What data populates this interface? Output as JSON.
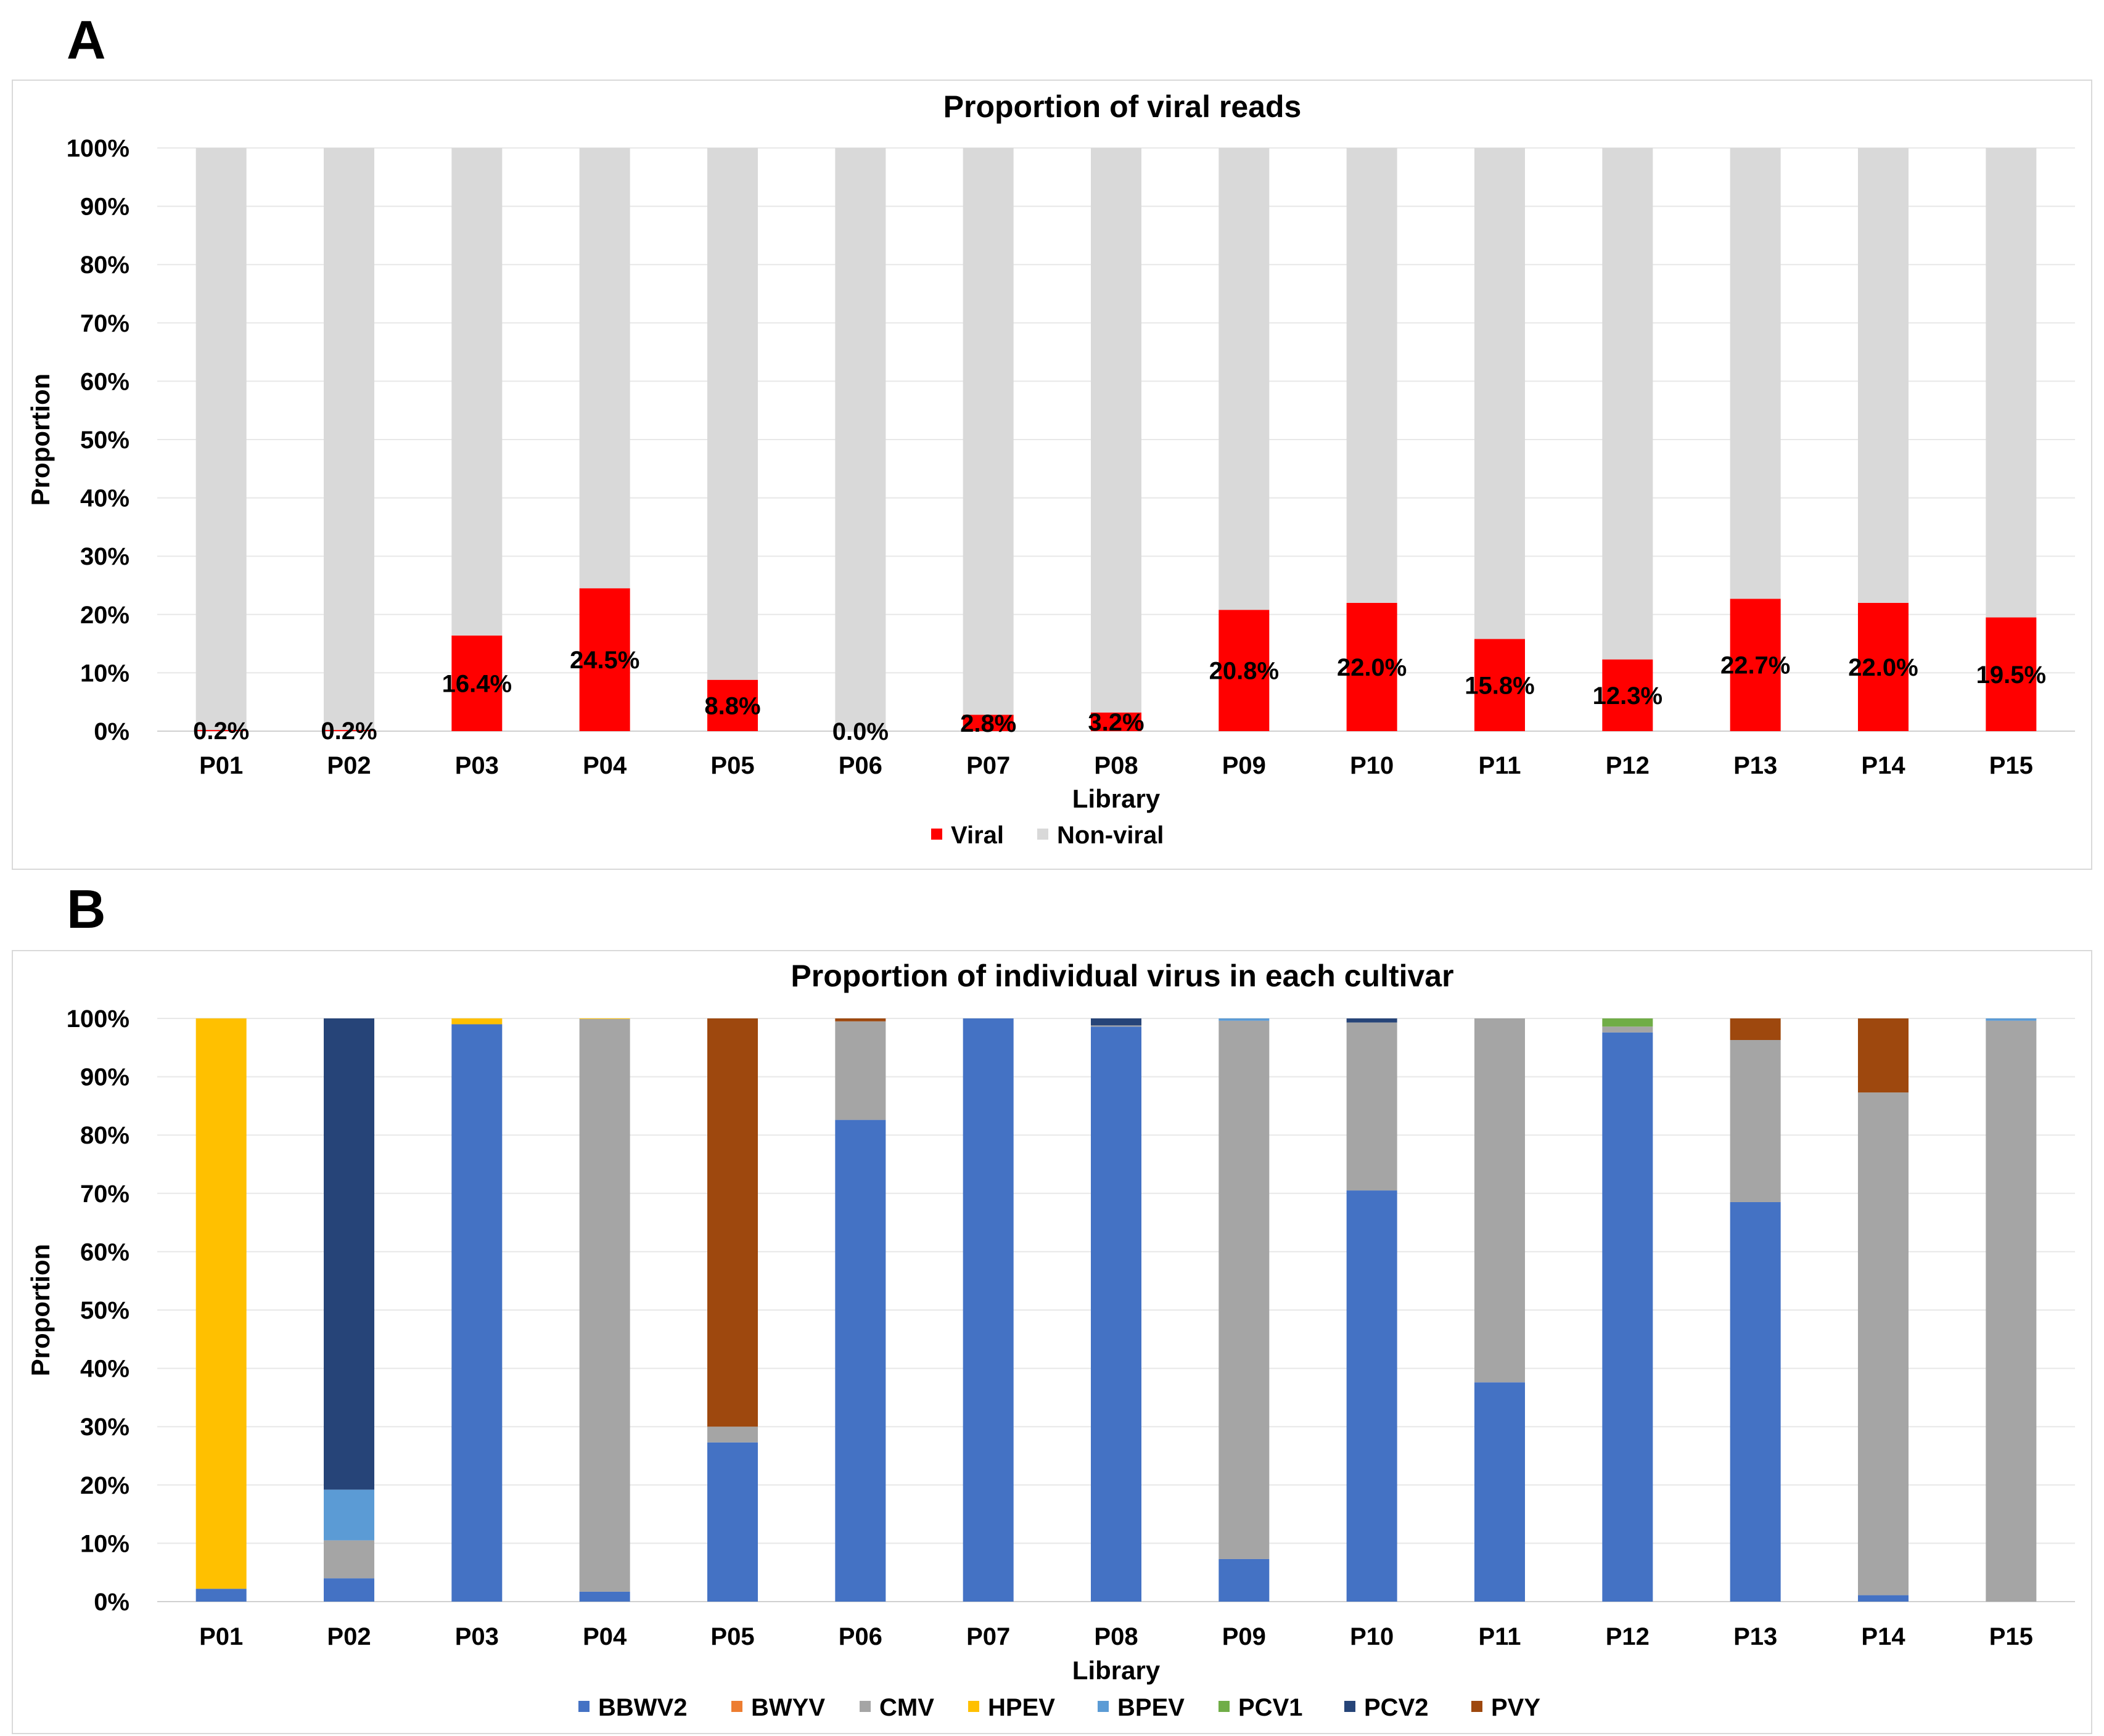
{
  "panels": {
    "a": "A",
    "b": "B"
  },
  "chart_data": [
    {
      "type": "bar",
      "stacked": true,
      "title": "Proportion of viral reads",
      "xlabel": "Library",
      "ylabel": "Proportion",
      "ylim": [
        0,
        100
      ],
      "yticks": [
        "0%",
        "10%",
        "20%",
        "30%",
        "40%",
        "50%",
        "60%",
        "70%",
        "80%",
        "90%",
        "100%"
      ],
      "legend_position": "bottom",
      "categories": [
        "P01",
        "P02",
        "P03",
        "P04",
        "P05",
        "P06",
        "P07",
        "P08",
        "P09",
        "P10",
        "P11",
        "P12",
        "P13",
        "P14",
        "P15"
      ],
      "series": [
        {
          "name": "Viral",
          "color": "#ff0000",
          "values": [
            0.2,
            0.2,
            16.4,
            24.5,
            8.8,
            0.0,
            2.8,
            3.2,
            20.8,
            22.0,
            15.8,
            12.3,
            22.7,
            22.0,
            19.5
          ]
        },
        {
          "name": "Non-viral",
          "color": "#d9d9d9",
          "values": [
            99.8,
            99.8,
            83.6,
            75.5,
            91.2,
            100.0,
            97.2,
            96.8,
            79.2,
            78.0,
            84.2,
            87.7,
            77.3,
            78.0,
            80.5
          ]
        }
      ],
      "data_labels": [
        "0.2%",
        "0.2%",
        "16.4%",
        "24.5%",
        "8.8%",
        "0.0%",
        "2.8%",
        "3.2%",
        "20.8%",
        "22.0%",
        "15.8%",
        "12.3%",
        "22.7%",
        "22.0%",
        "19.5%"
      ]
    },
    {
      "type": "bar",
      "stacked": true,
      "title": "Proportion of individual virus in each cultivar",
      "xlabel": "Library",
      "ylabel": "Proportion",
      "ylim": [
        0,
        100
      ],
      "yticks": [
        "0%",
        "10%",
        "20%",
        "30%",
        "40%",
        "50%",
        "60%",
        "70%",
        "80%",
        "90%",
        "100%"
      ],
      "legend_position": "bottom",
      "categories": [
        "P01",
        "P02",
        "P03",
        "P04",
        "P05",
        "P06",
        "P07",
        "P08",
        "P09",
        "P10",
        "P11",
        "P12",
        "P13",
        "P14",
        "P15"
      ],
      "series": [
        {
          "name": "BBWV2",
          "color": "#4472c4",
          "values": [
            2.2,
            4.0,
            99.0,
            1.7,
            27.3,
            82.6,
            100.0,
            98.6,
            7.3,
            70.5,
            37.6,
            97.6,
            68.5,
            1.1,
            0.0
          ]
        },
        {
          "name": "BWYV",
          "color": "#ed7d31",
          "values": [
            0,
            0,
            0,
            0,
            0,
            0,
            0,
            0,
            0,
            0,
            0,
            0,
            0,
            0,
            0
          ]
        },
        {
          "name": "CMV",
          "color": "#a5a5a5",
          "values": [
            0,
            6.5,
            0,
            98.2,
            2.7,
            16.9,
            0,
            0.2,
            92.3,
            28.8,
            62.4,
            1.0,
            27.8,
            86.2,
            99.6
          ]
        },
        {
          "name": "HPEV",
          "color": "#ffc000",
          "values": [
            97.8,
            0,
            1.0,
            0.1,
            0,
            0,
            0,
            0,
            0,
            0,
            0,
            0,
            0,
            0,
            0
          ]
        },
        {
          "name": "BPEV",
          "color": "#5b9bd5",
          "values": [
            0,
            8.7,
            0,
            0,
            0,
            0,
            0,
            0,
            0.4,
            0,
            0,
            0,
            0,
            0,
            0.4
          ]
        },
        {
          "name": "PCV1",
          "color": "#70ad47",
          "values": [
            0,
            0,
            0,
            0,
            0,
            0,
            0,
            0,
            0,
            0,
            0,
            1.4,
            0,
            0,
            0
          ]
        },
        {
          "name": "PCV2",
          "color": "#264478",
          "values": [
            0,
            80.8,
            0,
            0,
            0,
            0,
            0,
            1.2,
            0,
            0.7,
            0,
            0,
            0,
            0,
            0
          ]
        },
        {
          "name": "PVY",
          "color": "#9e480e",
          "values": [
            0,
            0,
            0,
            0,
            70.0,
            0.5,
            0,
            0,
            0,
            0,
            0,
            0,
            3.7,
            12.7,
            0
          ]
        }
      ]
    }
  ]
}
